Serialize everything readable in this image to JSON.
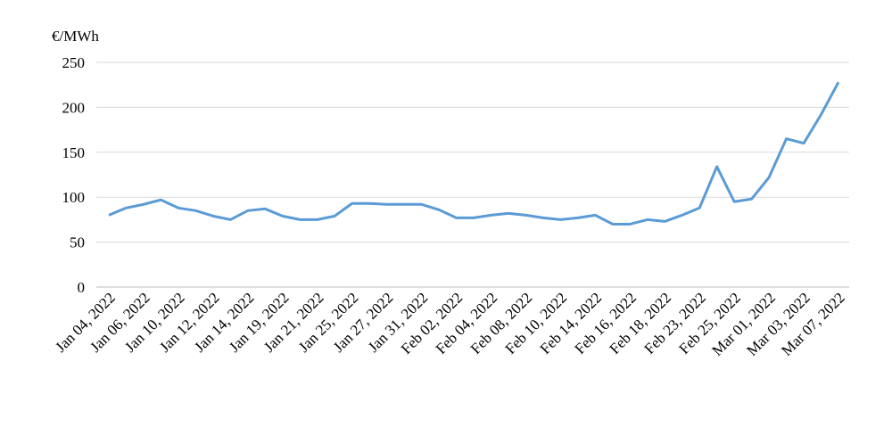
{
  "chart_data": {
    "type": "line",
    "y_label": "€/MWh",
    "categories": [
      "Jan 04, 2022",
      null,
      "Jan 06, 2022",
      null,
      "Jan 10, 2022",
      null,
      "Jan 12, 2022",
      null,
      "Jan 14, 2022",
      null,
      "Jan 19, 2022",
      null,
      "Jan 21, 2022",
      null,
      "Jan 25, 2022",
      null,
      "Jan 27, 2022",
      null,
      "Jan 31, 2022",
      null,
      "Feb 02, 2022",
      null,
      "Feb 04, 2022",
      null,
      "Feb 08, 2022",
      null,
      "Feb 10, 2022",
      null,
      "Feb 14, 2022",
      null,
      "Feb 16, 2022",
      null,
      "Feb 18, 2022",
      null,
      "Feb 23, 2022",
      null,
      "Feb 25, 2022",
      null,
      "Mar 01, 2022",
      null,
      "Mar 03, 2022",
      null,
      "Mar 07, 2022"
    ],
    "values": [
      80,
      88,
      92,
      97,
      88,
      85,
      79,
      75,
      85,
      87,
      79,
      75,
      75,
      79,
      93,
      93,
      92,
      92,
      92,
      86,
      77,
      77,
      80,
      82,
      80,
      77,
      75,
      77,
      80,
      70,
      70,
      75,
      73,
      80,
      88,
      134,
      95,
      98,
      122,
      165,
      160,
      192,
      228
    ],
    "color": "#5b9bd5",
    "ylim": [
      0,
      250
    ],
    "yticks": [
      0,
      50,
      100,
      150,
      200,
      250
    ],
    "grid": true
  }
}
